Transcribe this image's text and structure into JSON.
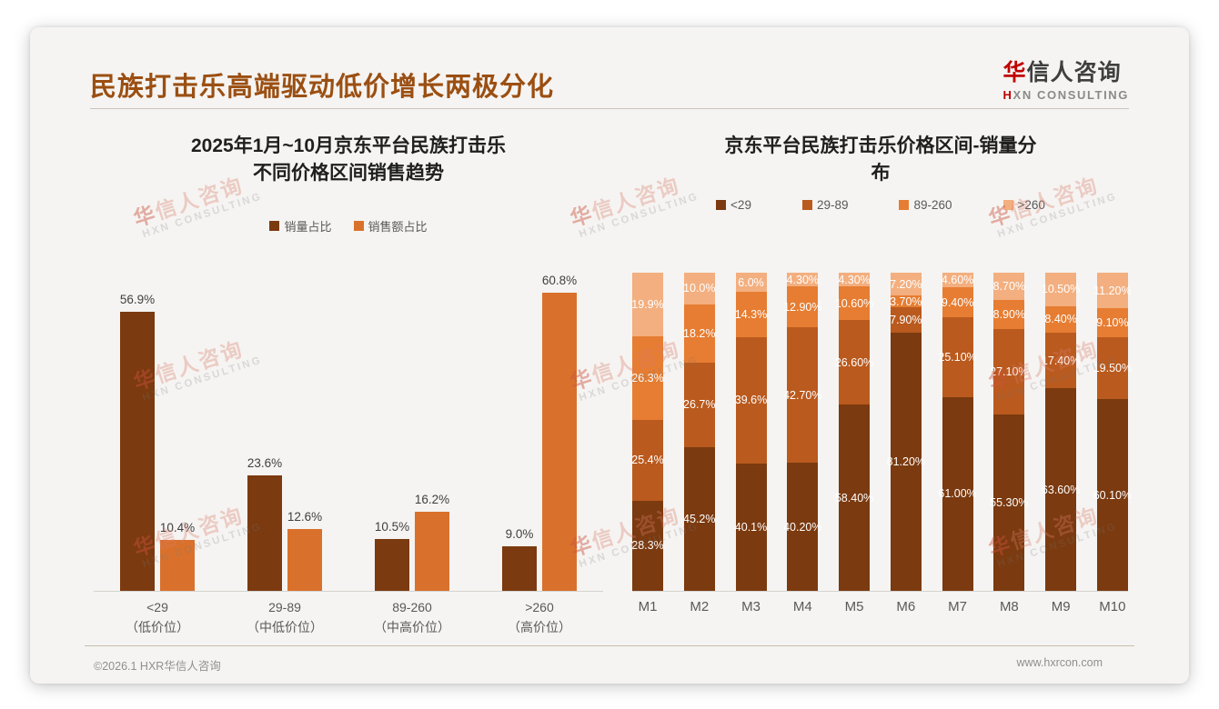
{
  "page": {
    "main_title": "民族打击乐高端驱动低价增长两极分化",
    "logo": {
      "cn_first": "华",
      "cn_rest": "信人咨询",
      "en_first": "H",
      "en_rest": "XN CONSULTING"
    },
    "footer": {
      "left": "©2026.1 HXR华信人咨询",
      "right": "www.hxrcon.com"
    },
    "watermark": {
      "cn_first": "华",
      "cn_rest": "信人咨询",
      "en": "HXN CONSULTING"
    }
  },
  "colors": {
    "title_brown": "#9b4f12",
    "logo_red": "#c00000",
    "dark_brown": "#7b3a0f",
    "mid_brown": "#ba5a1e",
    "orange": "#e67d32",
    "light_orange": "#f3af7f",
    "sales_orange": "#d9712c",
    "axis_gray": "#595959"
  },
  "chart_data": [
    {
      "type": "bar",
      "title_lines": [
        "2025年1月~10月京东平台民族打击乐",
        "不同价格区间销售趋势"
      ],
      "legend_position": "top",
      "grid": false,
      "ylim": [
        0,
        65
      ],
      "categories": [
        "<29",
        "29-89",
        "89-260",
        ">260"
      ],
      "category_sublabels": [
        "（低价位）",
        "（中低价位）",
        "（中高价位）",
        "（高价位）"
      ],
      "series": [
        {
          "name": "销量占比",
          "color": "#7b3a0f",
          "values": [
            56.9,
            23.6,
            10.5,
            9.0
          ],
          "labels": [
            "56.9%",
            "23.6%",
            "10.5%",
            "9.0%"
          ]
        },
        {
          "name": "销售额占比",
          "color": "#d9712c",
          "values": [
            10.4,
            12.6,
            16.2,
            60.8
          ],
          "labels": [
            "10.4%",
            "12.6%",
            "16.2%",
            "60.8%"
          ]
        }
      ]
    },
    {
      "type": "stacked-bar-100",
      "title_lines": [
        "京东平台民族打击乐价格区间-销量分",
        "布"
      ],
      "legend_position": "top",
      "grid": false,
      "ylim": [
        0,
        100
      ],
      "categories": [
        "M1",
        "M2",
        "M3",
        "M4",
        "M5",
        "M6",
        "M7",
        "M8",
        "M9",
        "M10"
      ],
      "series": [
        {
          "name": "<29",
          "color": "#7b3a0f",
          "values": [
            28.3,
            45.2,
            40.1,
            40.2,
            58.4,
            81.2,
            61.0,
            55.3,
            63.6,
            60.1
          ],
          "labels": [
            "28.3%",
            "45.2%",
            "40.1%",
            "40.20%",
            "58.40%",
            "81.20%",
            "61.00%",
            "55.30%",
            "63.60%",
            "60.10%"
          ]
        },
        {
          "name": "29-89",
          "color": "#ba5a1e",
          "values": [
            25.4,
            26.7,
            39.6,
            42.7,
            26.6,
            7.9,
            25.1,
            27.1,
            17.4,
            19.5
          ],
          "labels": [
            "25.4%",
            "26.7%",
            "39.6%",
            "42.70%",
            "26.60%",
            "7.90%",
            "25.10%",
            "27.10%",
            "17.40%",
            "19.50%"
          ]
        },
        {
          "name": "89-260",
          "color": "#e67d32",
          "values": [
            26.3,
            18.2,
            14.3,
            12.9,
            10.6,
            3.7,
            9.4,
            8.9,
            8.4,
            9.1
          ],
          "labels": [
            "26.3%",
            "18.2%",
            "14.3%",
            "12.90%",
            "10.60%",
            "3.70%",
            "9.40%",
            "8.90%",
            "8.40%",
            "9.10%"
          ]
        },
        {
          "name": ">260",
          "color": "#f3af7f",
          "values": [
            19.9,
            10.0,
            6.0,
            4.3,
            4.3,
            7.2,
            4.6,
            8.7,
            10.5,
            11.2
          ],
          "labels": [
            "19.9%",
            "10.0%",
            "6.0%",
            "4.30%",
            "4.30%",
            "7.20%",
            "4.60%",
            "8.70%",
            "10.50%",
            "11.20%"
          ]
        }
      ]
    }
  ]
}
